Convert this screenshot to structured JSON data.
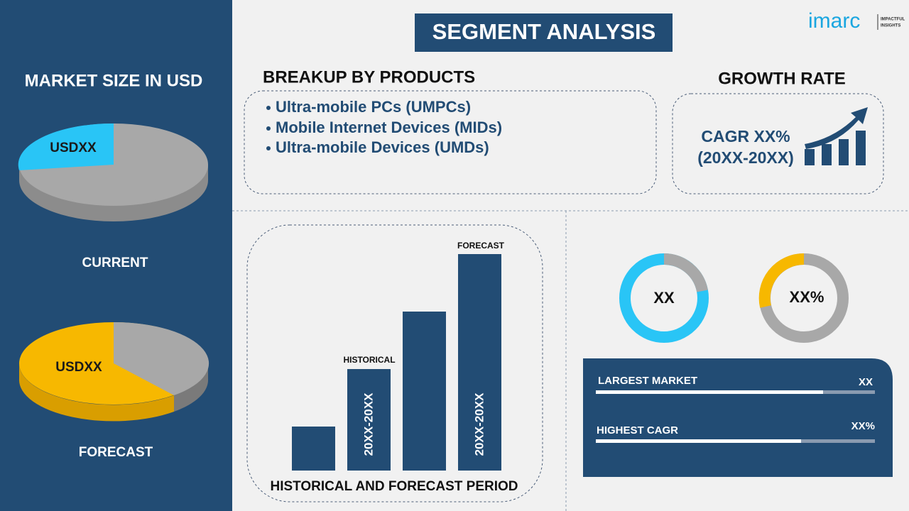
{
  "logo": {
    "brand": "imarc",
    "tagline": [
      "IMPACTFUL",
      "INSIGHTS"
    ]
  },
  "title": "SEGMENT ANALYSIS",
  "market_size": {
    "heading": "MARKET SIZE IN USD",
    "current": {
      "value": "USDXX",
      "label": "CURRENT"
    },
    "forecast": {
      "value": "USDXX",
      "label": "FORECAST"
    }
  },
  "breakup": {
    "heading": "BREAKUP BY PRODUCTS",
    "items": [
      "Ultra-mobile PCs (UMPCs)",
      "Mobile Internet Devices (MIDs)",
      "Ultra-mobile Devices (UMDs)"
    ]
  },
  "growth_rate": {
    "heading": "GROWTH RATE",
    "lines": [
      "CAGR XX%",
      "(20XX-20XX)"
    ]
  },
  "period_chart": {
    "historical_label": "HISTORICAL",
    "forecast_label": "FORECAST",
    "historical_period": "20XX-20XX",
    "forecast_period": "20XX-20XX",
    "caption": "HISTORICAL AND FORECAST PERIOD"
  },
  "donuts": [
    "XX",
    "XX%"
  ],
  "summary": [
    {
      "label": "LARGEST MARKET",
      "value": "XX"
    },
    {
      "label": "HIGHEST CAGR",
      "value": "XX%"
    }
  ]
}
